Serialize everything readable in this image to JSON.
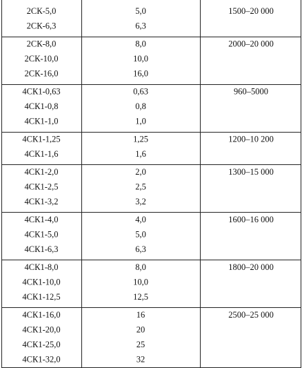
{
  "table": {
    "rows": [
      {
        "names": [
          "2СК-5,0",
          "2СК-6,3"
        ],
        "values": [
          "5,0",
          "6,3"
        ],
        "range": "1500–20 000"
      },
      {
        "names": [
          "2СК-8,0",
          "2СК-10,0",
          "2СК-16,0"
        ],
        "values": [
          "8,0",
          "10,0",
          "16,0"
        ],
        "range": "2000–20 000"
      },
      {
        "names": [
          "4СК1-0,63",
          "4СК1-0,8",
          "4СК1-1,0"
        ],
        "values": [
          "0,63",
          "0,8",
          "1,0"
        ],
        "range": "960–5000"
      },
      {
        "names": [
          "4СК1-1,25",
          "4СК1-1,6"
        ],
        "values": [
          "1,25",
          "1,6"
        ],
        "range": "1200–10 200"
      },
      {
        "names": [
          "4СК1-2,0",
          "4СК1-2,5",
          "4СК1-3,2"
        ],
        "values": [
          "2,0",
          "2,5",
          "3,2"
        ],
        "range": "1300–15 000"
      },
      {
        "names": [
          "4СК1-4,0",
          "4СК1-5,0",
          "4СК1-6,3"
        ],
        "values": [
          "4,0",
          "5,0",
          "6,3"
        ],
        "range": "1600–16 000"
      },
      {
        "names": [
          "4СК1-8,0",
          "4СК1-10,0",
          "4СК1-12,5"
        ],
        "values": [
          "8,0",
          "10,0",
          "12,5"
        ],
        "range": "1800–20 000"
      },
      {
        "names": [
          "4СК1-16,0",
          "4СК1-20,0",
          "4СК1-25,0",
          "4СК1-32,0"
        ],
        "values": [
          "16",
          "20",
          "25",
          "32"
        ],
        "range": "2500–25 000"
      }
    ]
  }
}
